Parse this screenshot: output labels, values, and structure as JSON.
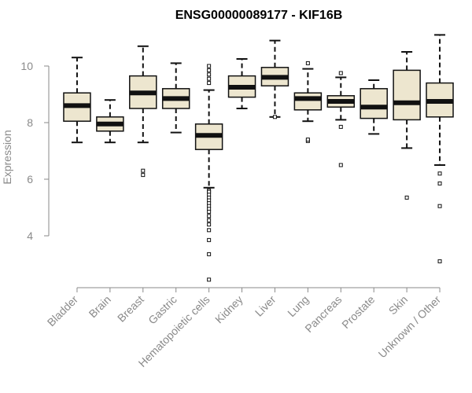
{
  "chart_data": {
    "type": "box",
    "title": "ENSG00000089177 - KIF16B",
    "xlabel": "",
    "ylabel": "Expression",
    "ylim": [
      2.0,
      11.5
    ],
    "yticks": [
      4,
      6,
      8,
      10
    ],
    "grid": false,
    "box_fill": "#ede6cf",
    "box_stroke": "#111111",
    "categories": [
      "Bladder",
      "Brain",
      "Breast",
      "Gastric",
      "Hematopoietic cells",
      "Kidney",
      "Liver",
      "Lung",
      "Pancreas",
      "Prostate",
      "Skin",
      "Unknown / Other"
    ],
    "boxes": [
      {
        "category": "Bladder",
        "min": 7.3,
        "q1": 8.05,
        "median": 8.6,
        "q3": 9.05,
        "max": 10.3,
        "outliers": []
      },
      {
        "category": "Brain",
        "min": 7.3,
        "q1": 7.7,
        "median": 7.95,
        "q3": 8.2,
        "max": 8.8,
        "outliers": []
      },
      {
        "category": "Breast",
        "min": 7.3,
        "q1": 8.5,
        "median": 9.05,
        "q3": 9.65,
        "max": 10.7,
        "outliers": [
          6.15,
          6.3
        ]
      },
      {
        "category": "Gastric",
        "min": 7.65,
        "q1": 8.5,
        "median": 8.85,
        "q3": 9.2,
        "max": 10.1,
        "outliers": []
      },
      {
        "category": "Hematopoietic cells",
        "min": 5.7,
        "q1": 7.05,
        "median": 7.55,
        "q3": 7.95,
        "max": 9.15,
        "outliers": [
          10.0,
          9.85,
          9.7,
          9.55,
          9.4,
          5.6,
          5.55,
          5.45,
          5.35,
          5.25,
          5.15,
          5.05,
          4.95,
          4.85,
          4.7,
          4.55,
          4.4,
          4.2,
          3.85,
          3.35,
          2.45
        ]
      },
      {
        "category": "Kidney",
        "min": 8.5,
        "q1": 8.9,
        "median": 9.25,
        "q3": 9.65,
        "max": 10.25,
        "outliers": []
      },
      {
        "category": "Liver",
        "min": 8.2,
        "q1": 9.3,
        "median": 9.6,
        "q3": 9.95,
        "max": 10.9,
        "outliers": [
          8.2
        ]
      },
      {
        "category": "Lung",
        "min": 8.05,
        "q1": 8.45,
        "median": 8.85,
        "q3": 9.05,
        "max": 9.9,
        "outliers": [
          10.1,
          7.35,
          7.4
        ]
      },
      {
        "category": "Pancreas",
        "min": 8.1,
        "q1": 8.55,
        "median": 8.75,
        "q3": 8.95,
        "max": 9.6,
        "outliers": [
          9.75,
          7.85,
          6.5
        ]
      },
      {
        "category": "Prostate",
        "min": 7.6,
        "q1": 8.15,
        "median": 8.55,
        "q3": 9.2,
        "max": 9.5,
        "outliers": []
      },
      {
        "category": "Skin",
        "min": 7.1,
        "q1": 8.1,
        "median": 8.7,
        "q3": 9.85,
        "max": 10.5,
        "outliers": [
          5.35
        ]
      },
      {
        "category": "Unknown / Other",
        "min": 6.5,
        "q1": 8.2,
        "median": 8.75,
        "q3": 9.4,
        "max": 11.1,
        "outliers": [
          6.2,
          5.85,
          5.05,
          3.1
        ]
      }
    ]
  }
}
